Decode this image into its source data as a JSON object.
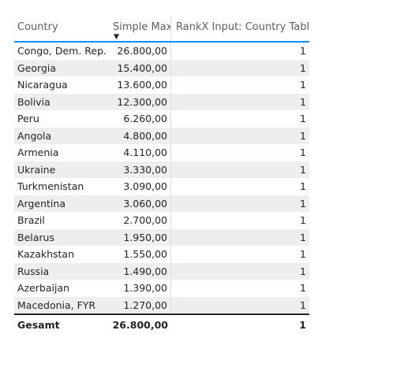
{
  "table": {
    "columns": {
      "country": "Country",
      "simple_max": "Simple Max",
      "rankx": "RankX Input: Country Table"
    },
    "sort_indicator": "▼",
    "rows": [
      {
        "country": "Congo, Dem. Rep.",
        "simple_max": "26.800,00",
        "rankx": "1"
      },
      {
        "country": "Georgia",
        "simple_max": "15.400,00",
        "rankx": "1"
      },
      {
        "country": "Nicaragua",
        "simple_max": "13.600,00",
        "rankx": "1"
      },
      {
        "country": "Bolivia",
        "simple_max": "12.300,00",
        "rankx": "1"
      },
      {
        "country": "Peru",
        "simple_max": "6.260,00",
        "rankx": "1"
      },
      {
        "country": "Angola",
        "simple_max": "4.800,00",
        "rankx": "1"
      },
      {
        "country": "Armenia",
        "simple_max": "4.110,00",
        "rankx": "1"
      },
      {
        "country": "Ukraine",
        "simple_max": "3.330,00",
        "rankx": "1"
      },
      {
        "country": "Turkmenistan",
        "simple_max": "3.090,00",
        "rankx": "1"
      },
      {
        "country": "Argentina",
        "simple_max": "3.060,00",
        "rankx": "1"
      },
      {
        "country": "Brazil",
        "simple_max": "2.700,00",
        "rankx": "1"
      },
      {
        "country": "Belarus",
        "simple_max": "1.950,00",
        "rankx": "1"
      },
      {
        "country": "Kazakhstan",
        "simple_max": "1.550,00",
        "rankx": "1"
      },
      {
        "country": "Russia",
        "simple_max": "1.490,00",
        "rankx": "1"
      },
      {
        "country": "Azerbaijan",
        "simple_max": "1.390,00",
        "rankx": "1"
      },
      {
        "country": "Macedonia, FYR",
        "simple_max": "1.270,00",
        "rankx": "1"
      }
    ],
    "total": {
      "label": "Gesamt",
      "simple_max": "26.800,00",
      "rankx": "1"
    }
  }
}
